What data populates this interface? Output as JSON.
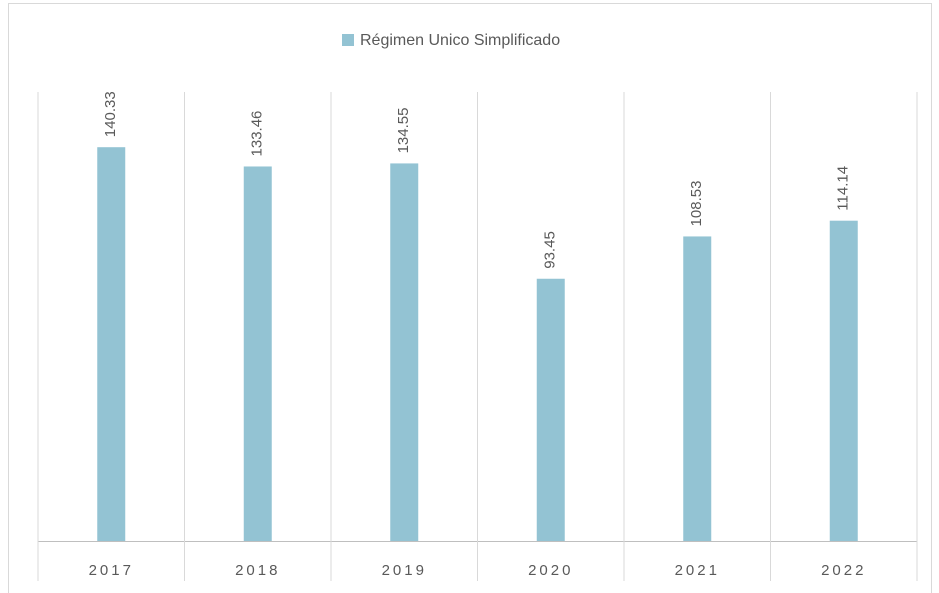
{
  "chart_data": {
    "type": "bar",
    "legend": "Régimen Unico Simplificado",
    "categories": [
      "2017",
      "2018",
      "2019",
      "2020",
      "2021",
      "2022"
    ],
    "values": [
      140.33,
      133.46,
      134.55,
      93.45,
      108.53,
      114.14
    ],
    "color": "#93c3d3",
    "ylim": [
      0,
      160
    ]
  }
}
